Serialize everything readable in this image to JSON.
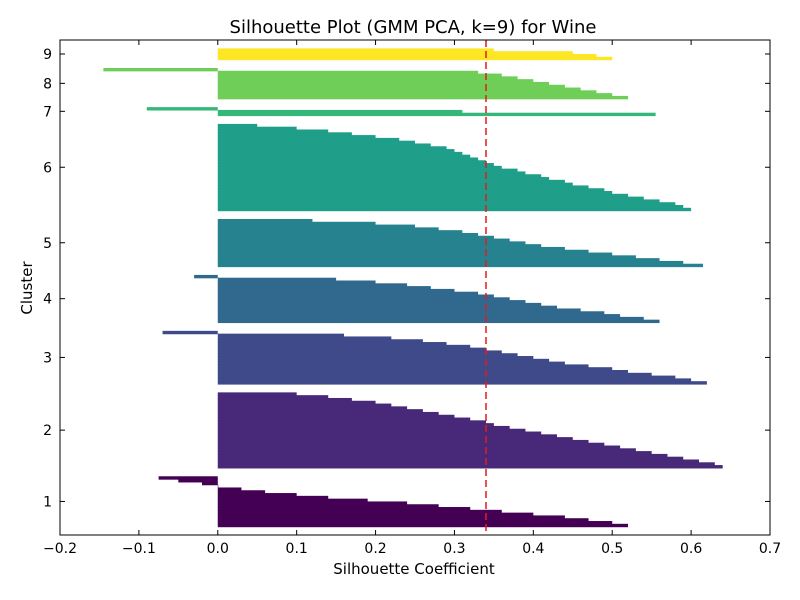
{
  "chart_data": {
    "type": "bar",
    "orientation": "horizontal",
    "title": "Silhouette Plot (GMM PCA, k=9) for Wine",
    "xlabel": "Silhouette Coefficient",
    "ylabel": "Cluster",
    "xlim": [
      -0.2,
      0.7
    ],
    "xticks": [
      -0.2,
      -0.1,
      0.0,
      0.1,
      0.2,
      0.3,
      0.4,
      0.5,
      0.6,
      0.7
    ],
    "xtick_labels": [
      "−0.2",
      "−0.1",
      "0.0",
      "0.1",
      "0.2",
      "0.3",
      "0.4",
      "0.5",
      "0.6",
      "0.7"
    ],
    "average_silhouette": 0.34,
    "reference_line_color": "#e41a1c",
    "grid": false,
    "clusters": [
      {
        "label": "1",
        "color": "#440154",
        "values": [
          0.52,
          0.5,
          0.47,
          0.44,
          0.4,
          0.36,
          0.32,
          0.28,
          0.24,
          0.19,
          0.14,
          0.1,
          0.06,
          0.03,
          0.0,
          -0.02,
          -0.05,
          -0.075
        ]
      },
      {
        "label": "2",
        "color": "#482878",
        "values": [
          0.64,
          0.63,
          0.61,
          0.59,
          0.57,
          0.55,
          0.53,
          0.51,
          0.49,
          0.47,
          0.45,
          0.43,
          0.41,
          0.39,
          0.37,
          0.35,
          0.34,
          0.32,
          0.3,
          0.28,
          0.26,
          0.24,
          0.22,
          0.2,
          0.17,
          0.14,
          0.1
        ]
      },
      {
        "label": "3",
        "color": "#3e4a89",
        "values": [
          0.62,
          0.6,
          0.58,
          0.55,
          0.52,
          0.5,
          0.47,
          0.44,
          0.42,
          0.4,
          0.38,
          0.36,
          0.34,
          0.32,
          0.29,
          0.26,
          0.22,
          0.16,
          -0.07
        ]
      },
      {
        "label": "4",
        "color": "#31688e",
        "values": [
          0.56,
          0.54,
          0.51,
          0.49,
          0.46,
          0.43,
          0.41,
          0.39,
          0.37,
          0.35,
          0.33,
          0.3,
          0.27,
          0.24,
          0.2,
          0.15,
          -0.03
        ]
      },
      {
        "label": "5",
        "color": "#26828e",
        "values": [
          0.615,
          0.59,
          0.56,
          0.53,
          0.5,
          0.47,
          0.44,
          0.41,
          0.39,
          0.37,
          0.35,
          0.33,
          0.31,
          0.28,
          0.25,
          0.2,
          0.12
        ]
      },
      {
        "label": "6",
        "color": "#1f9e89",
        "values": [
          0.6,
          0.59,
          0.58,
          0.56,
          0.54,
          0.52,
          0.5,
          0.49,
          0.47,
          0.45,
          0.44,
          0.42,
          0.41,
          0.39,
          0.38,
          0.36,
          0.35,
          0.34,
          0.33,
          0.32,
          0.31,
          0.3,
          0.29,
          0.27,
          0.25,
          0.23,
          0.2,
          0.17,
          0.14,
          0.1,
          0.05
        ]
      },
      {
        "label": "7",
        "color": "#35b779",
        "values": [
          0.555,
          0.31,
          -0.09
        ]
      },
      {
        "label": "8",
        "color": "#6ece58",
        "values": [
          0.52,
          0.5,
          0.48,
          0.46,
          0.44,
          0.42,
          0.4,
          0.38,
          0.36,
          0.33,
          -0.145
        ]
      },
      {
        "label": "9",
        "color": "#fde725",
        "values": [
          0.5,
          0.48,
          0.45,
          0.35
        ]
      }
    ]
  }
}
